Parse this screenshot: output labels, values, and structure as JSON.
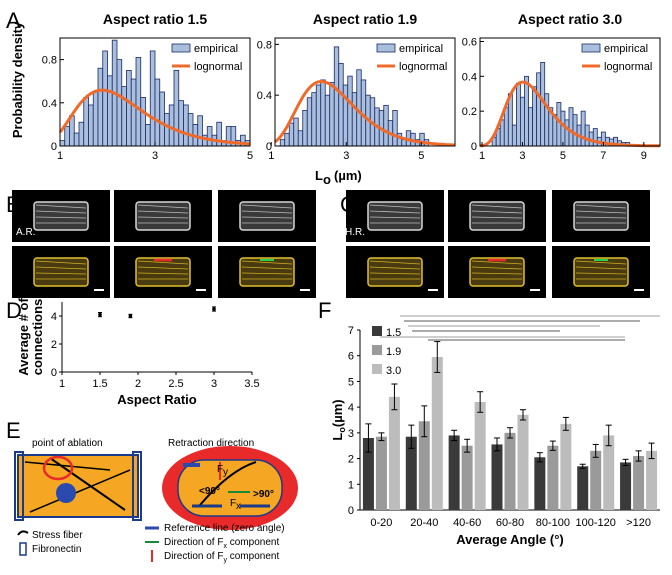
{
  "colors": {
    "bar_fill": "#a9bfdc",
    "bar_stroke": "#1a2a6a",
    "lognormal": "#f06a2a",
    "f_dark": "#3a3a3a",
    "f_mid": "#9a9a9a",
    "f_light": "#bcbcbc",
    "cell_fill": "#f5a623",
    "cell_stroke": "#1a3a8a",
    "halo": "#e82a2a"
  },
  "panel_letters": [
    "A",
    "B",
    "C",
    "D",
    "E",
    "F"
  ],
  "panel_a": {
    "ylabel": "Probability density",
    "xlabel_main": "L",
    "xlabel_sub": "o",
    "xlabel_unit": "(µm)",
    "legend": [
      "empirical",
      "lognormal"
    ]
  },
  "chart_data": [
    {
      "type": "bar",
      "panel": "A1",
      "title": "Aspect ratio 1.5",
      "xlim": [
        1,
        5
      ],
      "ylim": [
        0,
        1.0
      ],
      "xticks": [
        "1",
        "3",
        "5"
      ],
      "yticks": [
        "0",
        "0.4",
        "0.8"
      ],
      "bin_width": 0.1,
      "bins_start": 1.05,
      "values": [
        0.05,
        0.18,
        0.28,
        0.12,
        0.22,
        0.45,
        0.38,
        0.5,
        0.72,
        0.88,
        0.65,
        0.98,
        0.8,
        0.55,
        0.7,
        0.62,
        0.82,
        0.45,
        0.2,
        0.88,
        0.62,
        0.5,
        0.3,
        0.38,
        0.7,
        0.42,
        0.38,
        0.3,
        0.2,
        0.28,
        0.1,
        0.18,
        0.1,
        0.22,
        0.05,
        0.18,
        0.18,
        0.05,
        0.1,
        0.05
      ],
      "fit": {
        "mu": 0.78,
        "sigma": 0.38,
        "name": "lognormal"
      }
    },
    {
      "type": "bar",
      "panel": "A2",
      "title": "Aspect ratio 1.9",
      "xlim": [
        1.1,
        5.9
      ],
      "ylim": [
        0,
        0.85
      ],
      "xticks": [
        "1",
        "3",
        "5"
      ],
      "yticks": [
        "0",
        "0.4",
        "0.8"
      ],
      "bin_width": 0.12,
      "bins_start": 1.3,
      "values": [
        0.05,
        0.1,
        0.18,
        0.22,
        0.12,
        0.28,
        0.38,
        0.42,
        0.48,
        0.52,
        0.4,
        0.5,
        0.78,
        0.65,
        0.48,
        0.55,
        0.42,
        0.6,
        0.52,
        0.4,
        0.38,
        0.3,
        0.28,
        0.32,
        0.2,
        0.28,
        0.1,
        0.05,
        0.12,
        0.1,
        0.05,
        0.1,
        0.05
      ],
      "fit": {
        "mu": 0.95,
        "sigma": 0.32,
        "name": "lognormal"
      }
    },
    {
      "type": "bar",
      "panel": "A3",
      "title": "Aspect ratio 3.0",
      "xlim": [
        0.9,
        9.8
      ],
      "ylim": [
        0,
        0.62
      ],
      "xticks": [
        "1",
        "3",
        "5",
        "7",
        "9"
      ],
      "yticks": [
        "0",
        "0.2",
        "0.4",
        "0.6"
      ],
      "bin_width": 0.2,
      "bins_start": 1.6,
      "values": [
        0.05,
        0.1,
        0.15,
        0.22,
        0.3,
        0.12,
        0.36,
        0.28,
        0.4,
        0.22,
        0.34,
        0.42,
        0.48,
        0.3,
        0.22,
        0.18,
        0.25,
        0.2,
        0.15,
        0.22,
        0.18,
        0.12,
        0.2,
        0.12,
        0.08,
        0.1,
        0.05,
        0.08,
        0.05,
        0.04,
        0.05,
        0.03,
        0.02,
        0.02
      ],
      "fit": {
        "mu": 1.22,
        "sigma": 0.34,
        "name": "lognormal"
      }
    },
    {
      "type": "scatter",
      "panel": "D",
      "xlabel": "Aspect Ratio",
      "ylabel": [
        "Average # of",
        "connections"
      ],
      "xlim": [
        1,
        3.5
      ],
      "ylim": [
        0,
        5
      ],
      "xticks": [
        "1",
        "1.5",
        "2",
        "2.5",
        "3",
        "3.5"
      ],
      "yticks": [
        "0",
        "2",
        "4"
      ],
      "points": [
        {
          "x": 1.5,
          "y": 4.1,
          "err": 0.15
        },
        {
          "x": 1.9,
          "y": 4.0,
          "err": 0.12
        },
        {
          "x": 3.0,
          "y": 4.5,
          "err": 0.15
        }
      ]
    },
    {
      "type": "bar",
      "panel": "F",
      "xlabel": "Average Angle (°)",
      "ylabel_main": "L",
      "ylabel_sub": "o",
      "ylabel_unit": "(µm)",
      "ylim": [
        0,
        7
      ],
      "yticks": [
        "0",
        "1",
        "2",
        "3",
        "4",
        "5",
        "6",
        "7"
      ],
      "categories": [
        "0-20",
        "20-40",
        "40-60",
        "60-80",
        "80-100",
        "100-120",
        ">120"
      ],
      "series": [
        {
          "name": "1.5",
          "values": [
            2.8,
            2.85,
            2.9,
            2.55,
            2.05,
            1.7,
            1.85
          ],
          "errors": [
            0.55,
            0.45,
            0.2,
            0.25,
            0.18,
            0.08,
            0.12
          ]
        },
        {
          "name": "1.9",
          "values": [
            2.85,
            3.45,
            2.5,
            3.0,
            2.5,
            2.3,
            2.1
          ],
          "errors": [
            0.15,
            0.6,
            0.25,
            0.2,
            0.18,
            0.25,
            0.2
          ]
        },
        {
          "name": "3.0",
          "values": [
            4.4,
            5.95,
            4.2,
            3.7,
            3.35,
            2.9,
            2.3
          ],
          "errors": [
            0.5,
            0.6,
            0.4,
            0.2,
            0.25,
            0.4,
            0.3
          ]
        }
      ],
      "significance_lines": 6
    }
  ],
  "panel_bc": {
    "b_label": "A.R.",
    "c_label": "H.R."
  },
  "panel_e": {
    "left_title": "point of ablation",
    "right_title": "Retraction direction",
    "angle_lt": "<90°",
    "angle_gt": ">90°",
    "fy_label": "F",
    "fy_sub": "y",
    "fx_label": "F",
    "fx_sub": "x",
    "legend_stress": "Stress fiber",
    "legend_fibronectin": "Fibronectin",
    "legend_ref": "Reference line (zero angle)",
    "legend_fx_pre": "Direction of F",
    "legend_fx_sub": "x",
    "legend_fx_post": " component",
    "legend_fy_pre": "Direction of F",
    "legend_fy_sub": "y",
    "legend_fy_post": " component"
  }
}
